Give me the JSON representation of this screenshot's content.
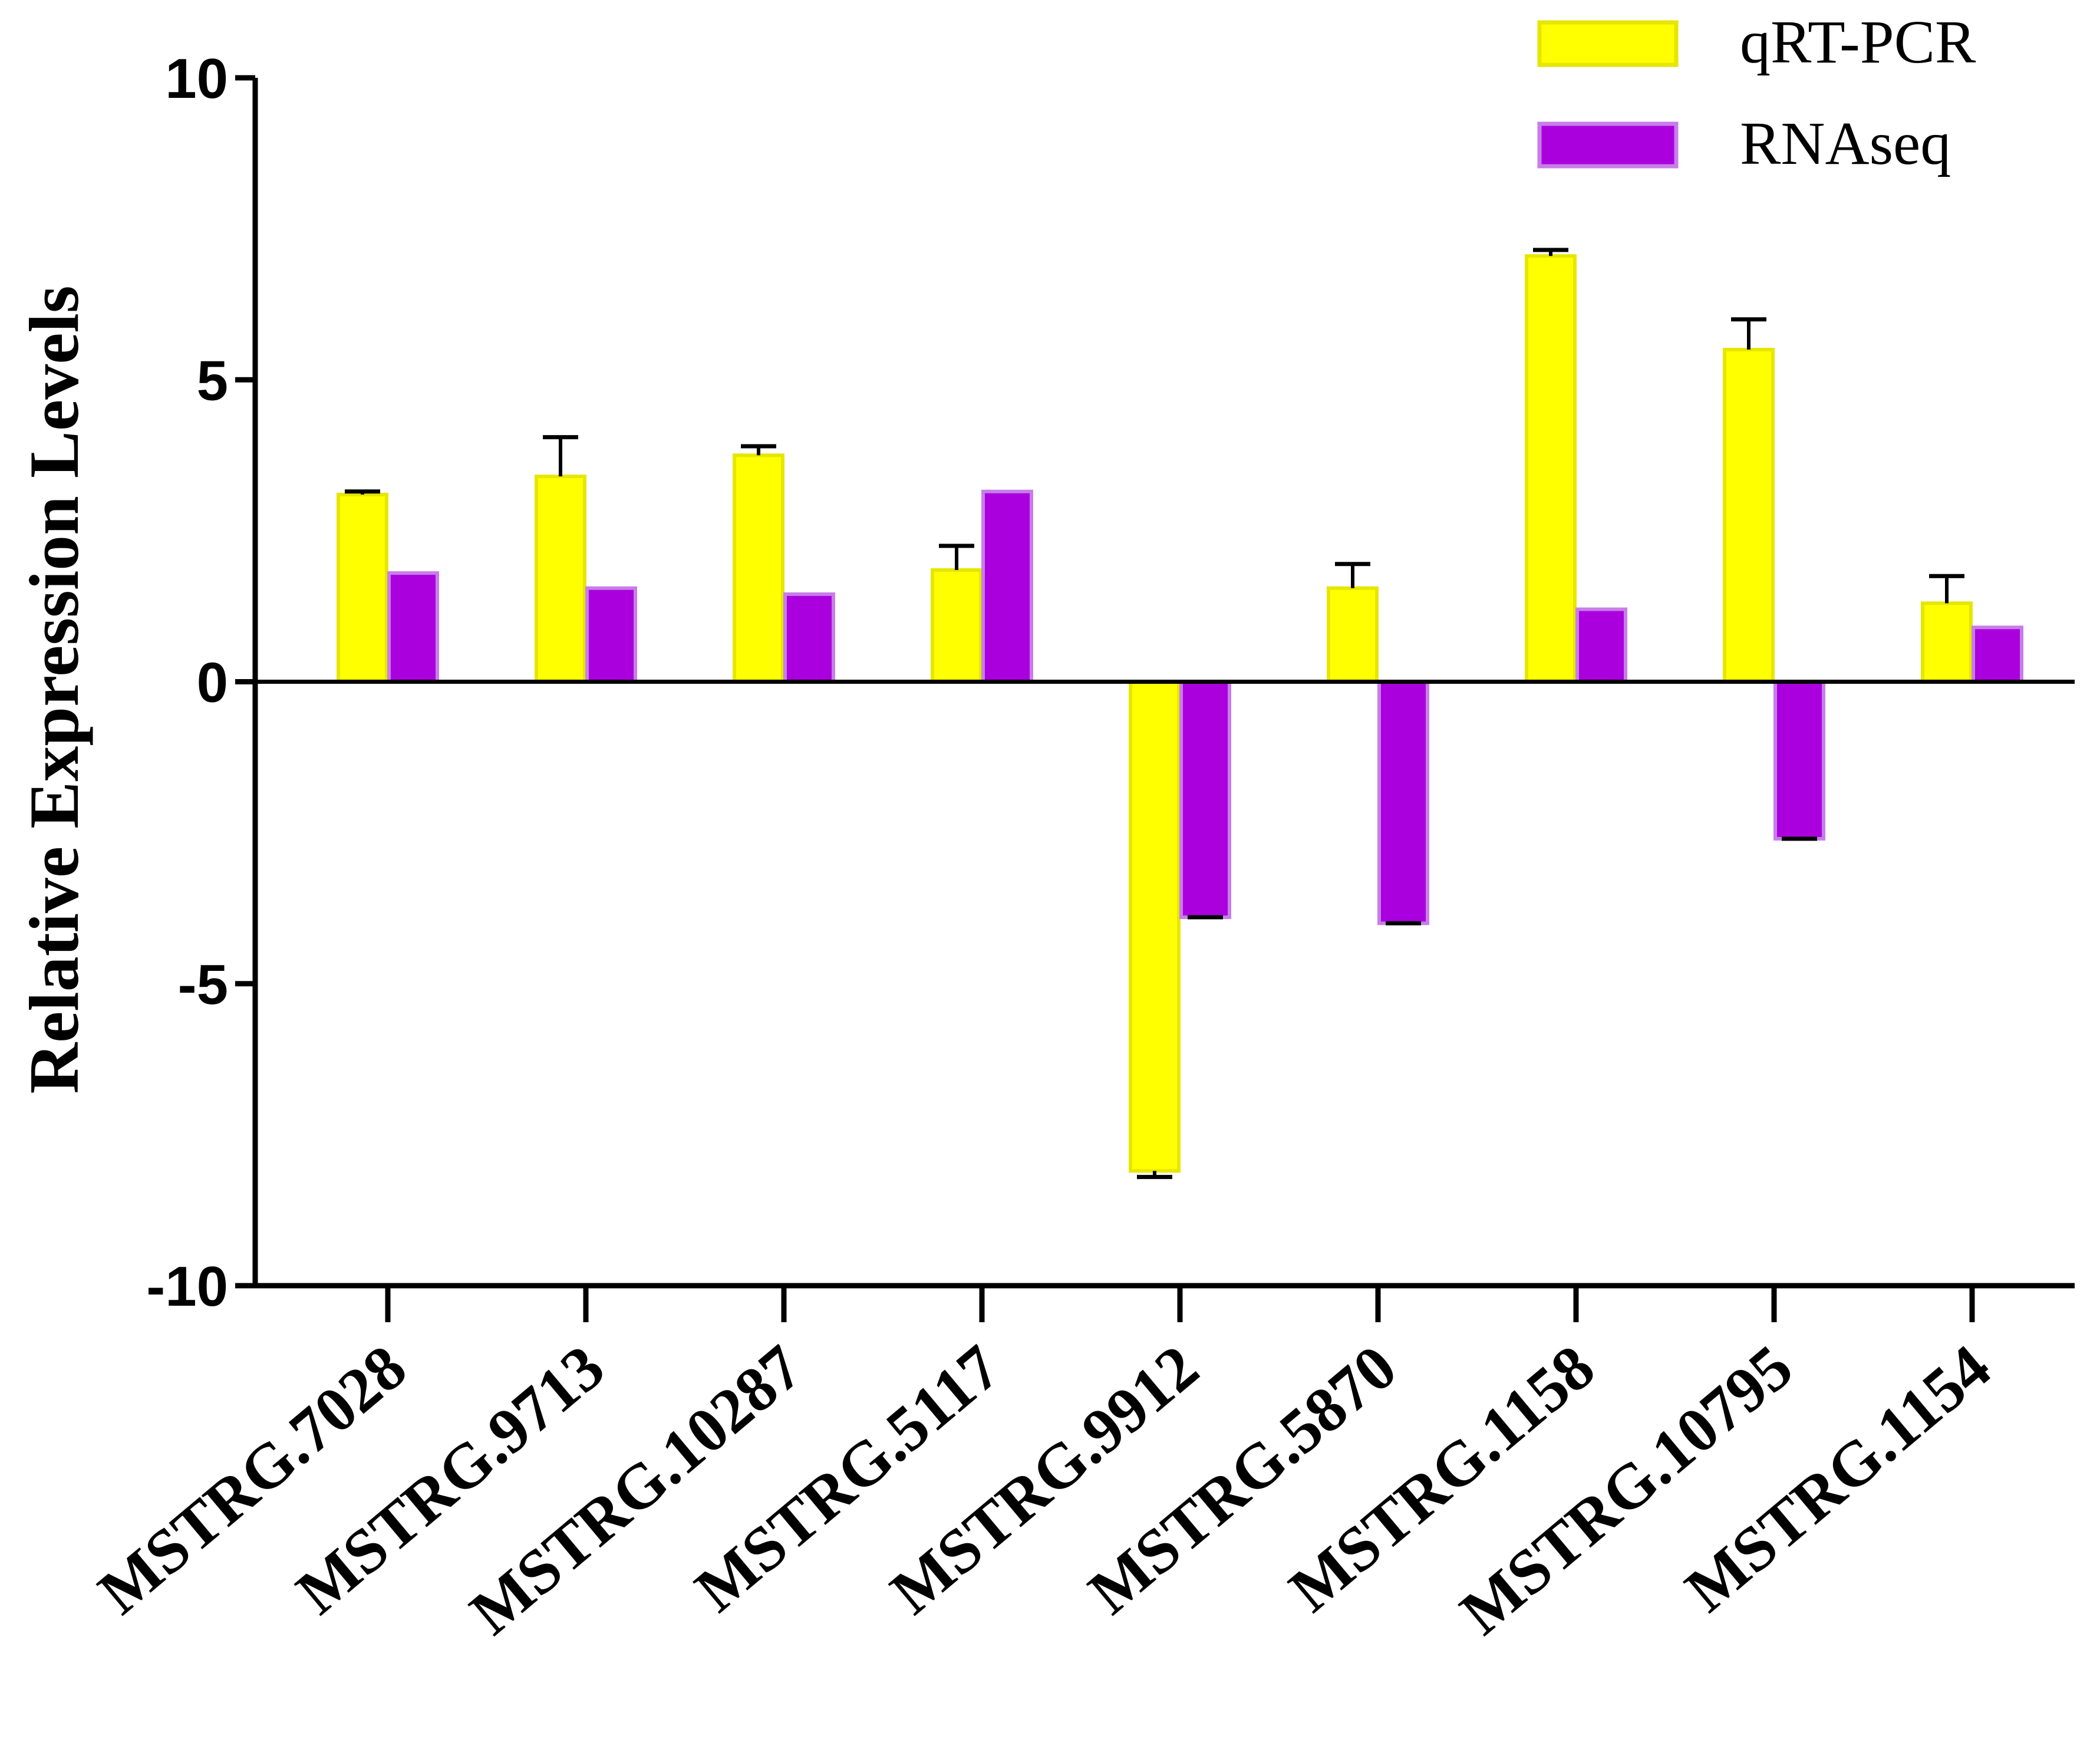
{
  "chart_data": {
    "type": "bar",
    "title": "",
    "xlabel": "",
    "ylabel": "Relative Expression Levels",
    "ylim": [
      -10,
      10
    ],
    "yticks": [
      10,
      5,
      0,
      -5,
      -10
    ],
    "categories": [
      "MSTRG.7028",
      "MSTRG.9713",
      "MSTRG.10287",
      "MSTRG.5117",
      "MSTRG.9912",
      "MSTRG.5870",
      "MSTRG.1158",
      "MSTRG.10795",
      "MSTRG.1154"
    ],
    "series": [
      {
        "name": "qRT-PCR",
        "color": "#ffff00",
        "values": [
          3.1,
          3.4,
          3.75,
          1.85,
          -8.1,
          1.55,
          7.05,
          5.5,
          1.3
        ],
        "errors": [
          0.05,
          0.65,
          0.15,
          0.4,
          0.1,
          0.4,
          0.1,
          0.5,
          0.45
        ]
      },
      {
        "name": "RNAseq",
        "color": "#aa00dd",
        "values": [
          1.8,
          1.55,
          1.45,
          3.15,
          -3.9,
          -4.0,
          1.2,
          -2.6,
          0.9
        ],
        "errors": [
          0,
          0,
          0,
          0,
          0,
          0,
          0,
          0,
          0
        ]
      }
    ],
    "grid": false,
    "legend": "top-right"
  }
}
